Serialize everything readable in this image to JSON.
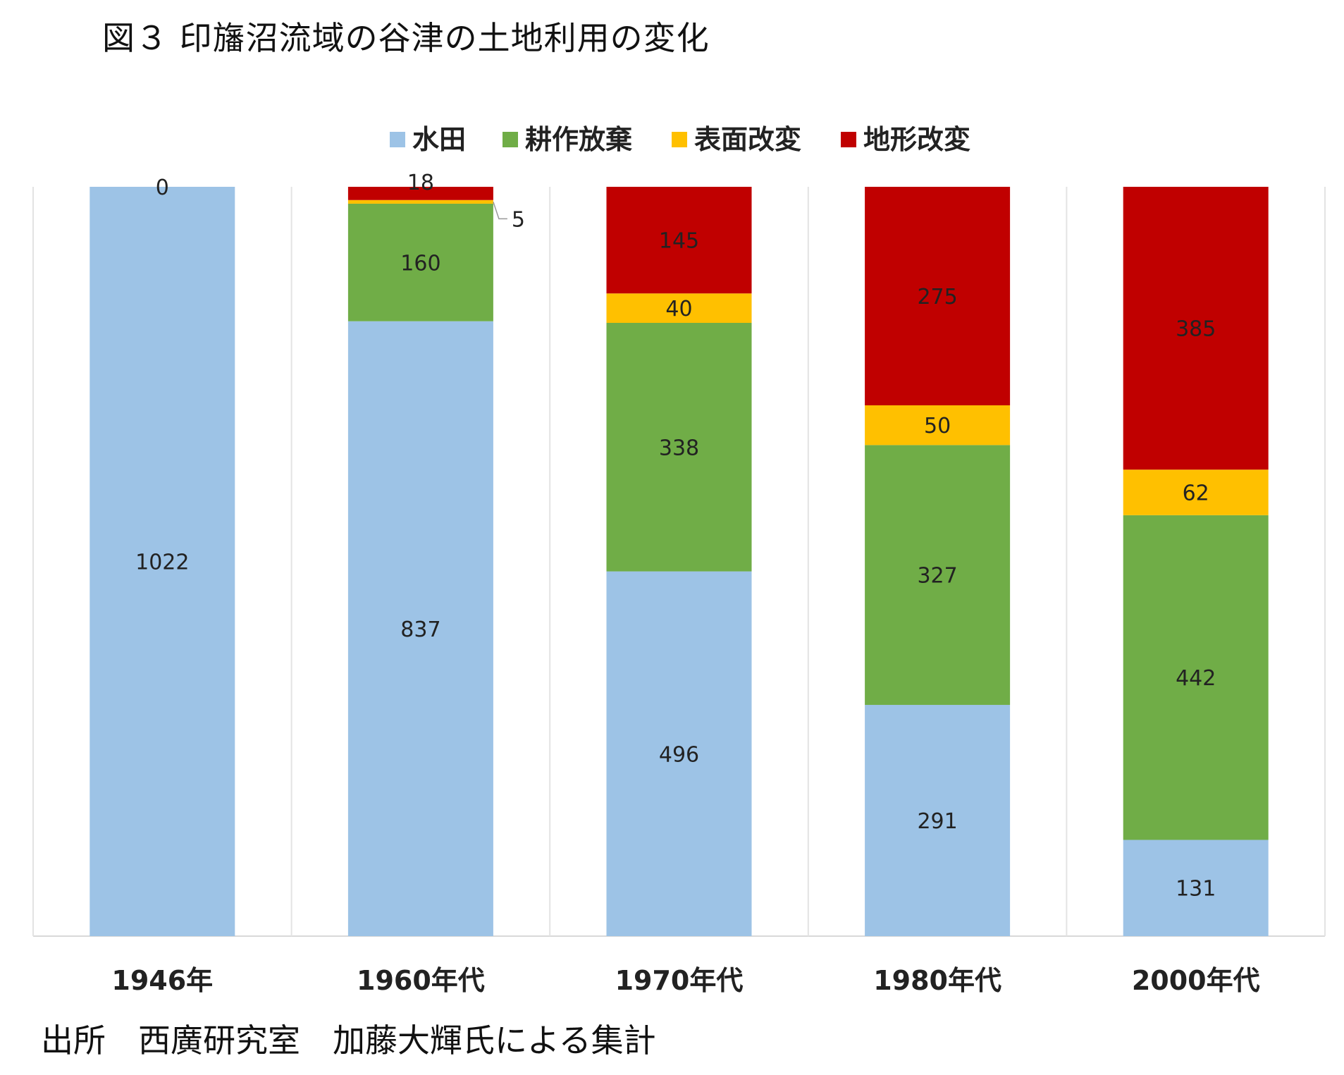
{
  "title": "図３ 印旛沼流域の谷津の土地利用の変化",
  "source": "出所　西廣研究室　加藤大輝氏による集計",
  "colors": {
    "水田": "#9dc3e6",
    "耕作放棄": "#70ad47",
    "表面改変": "#ffc000",
    "地形改変": "#c00000"
  },
  "chart_data": {
    "type": "bar",
    "stacked": true,
    "normalized_percent": true,
    "legend_position": "top",
    "grid": false,
    "categories": [
      "1946年",
      "1960年代",
      "1970年代",
      "1980年代",
      "2000年代"
    ],
    "series": [
      {
        "name": "水田",
        "values": [
          1022,
          837,
          496,
          291,
          131
        ]
      },
      {
        "name": "耕作放棄",
        "values": [
          0,
          160,
          338,
          327,
          442
        ]
      },
      {
        "name": "表面改変",
        "values": [
          0,
          5,
          40,
          50,
          62
        ]
      },
      {
        "name": "地形改変",
        "values": [
          0,
          18,
          145,
          275,
          385
        ]
      }
    ],
    "annotations": [
      "0"
    ]
  }
}
